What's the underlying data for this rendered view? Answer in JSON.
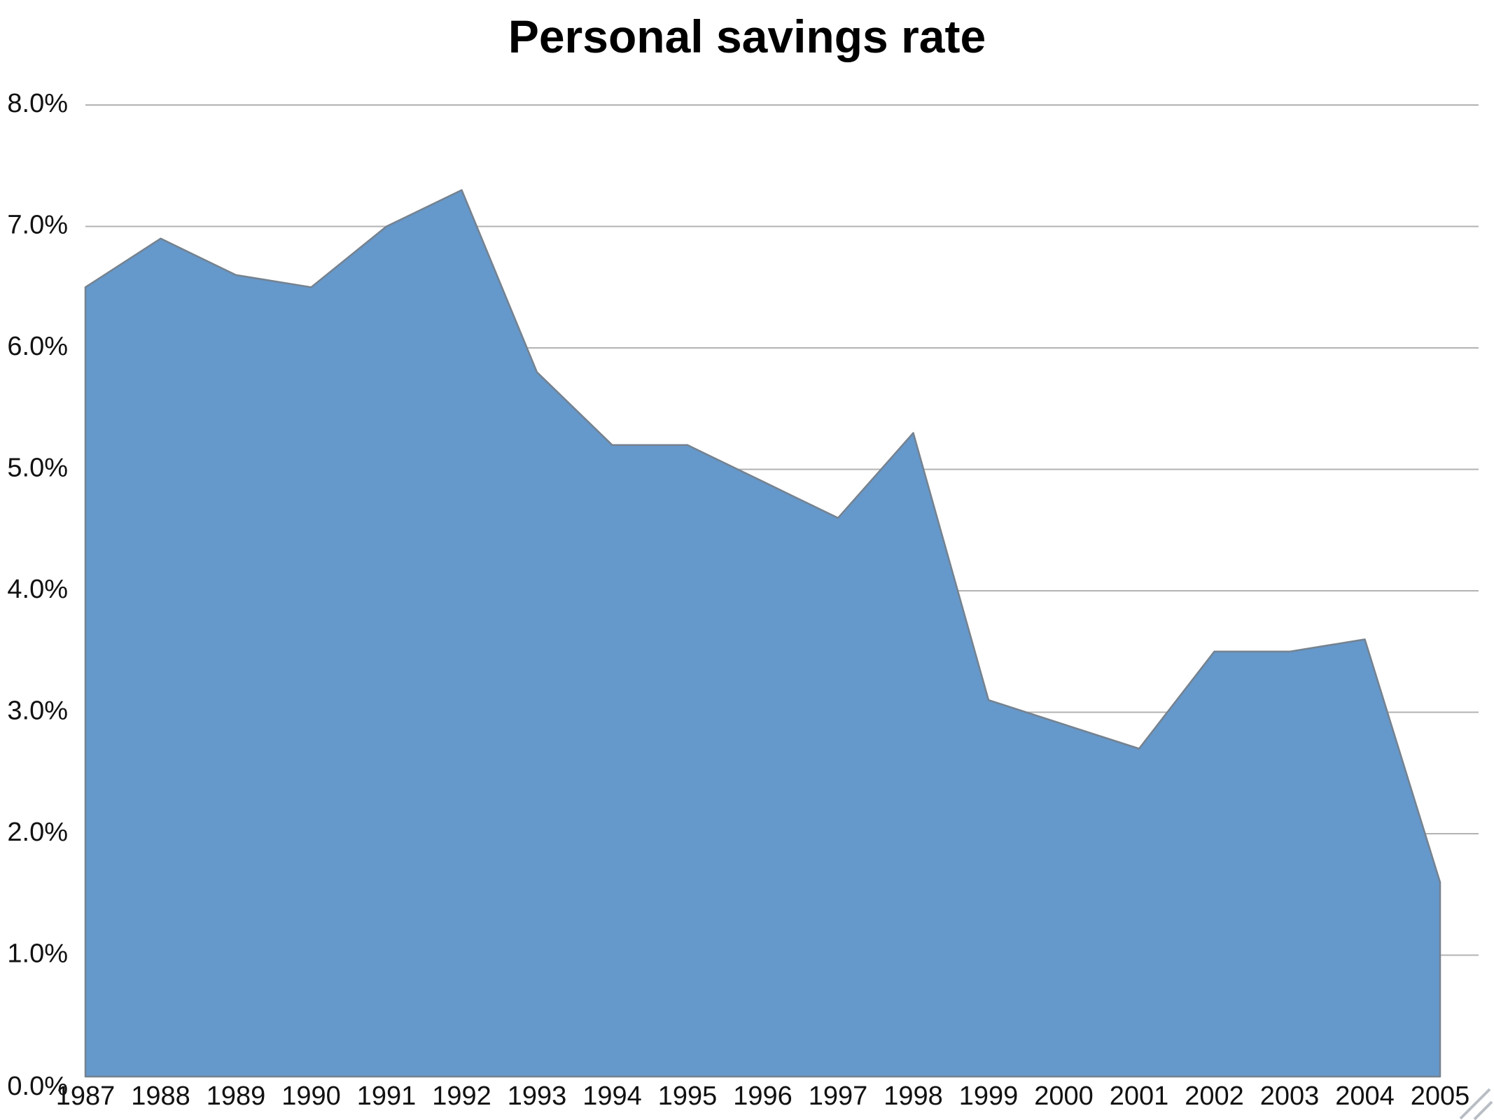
{
  "title": "Personal savings rate",
  "chart_data": {
    "type": "area",
    "title": "Personal savings rate",
    "categories": [
      "1987",
      "1988",
      "1989",
      "1990",
      "1991",
      "1992",
      "1993",
      "1994",
      "1995",
      "1996",
      "1997",
      "1998",
      "1999",
      "2000",
      "2001",
      "2002",
      "2003",
      "2004",
      "2005"
    ],
    "series": [
      {
        "name": "Personal savings rate",
        "values": [
          6.5,
          6.9,
          6.6,
          6.5,
          7.0,
          7.3,
          5.8,
          5.2,
          5.2,
          4.9,
          4.6,
          5.3,
          3.1,
          2.9,
          2.7,
          3.5,
          3.5,
          3.6,
          1.6
        ]
      }
    ],
    "unit": "%",
    "xlabel": "",
    "ylabel": "",
    "ylim": [
      0,
      8
    ],
    "ytick_step": 1,
    "ytick_labels": [
      "0.0%",
      "1.0%",
      "2.0%",
      "3.0%",
      "4.0%",
      "5.0%",
      "6.0%",
      "7.0%",
      "8.0%"
    ],
    "grid": true,
    "legend_position": "none",
    "colors": {
      "area_fill": "#6598cb",
      "area_outline": "#75828f",
      "gridline": "#b3b3b3",
      "tick_text": "#111111",
      "background": "#ffffff",
      "resize_handle": "#b9bec5"
    }
  }
}
